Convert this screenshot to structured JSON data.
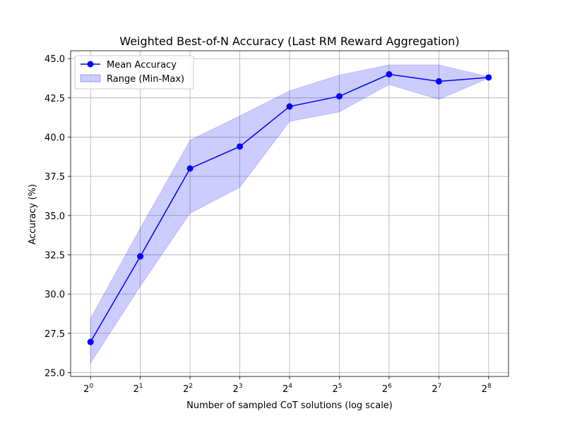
{
  "chart_data": {
    "type": "line",
    "title": "Weighted Best-of-N Accuracy (Last RM Reward Aggregation)",
    "xlabel": "Number of sampled CoT solutions (log scale)",
    "ylabel": "Accuracy (%)",
    "x_scale": "log2",
    "x": [
      1,
      2,
      4,
      8,
      16,
      32,
      64,
      128,
      256
    ],
    "x_tick_labels": [
      {
        "base": "2",
        "exp": "0"
      },
      {
        "base": "2",
        "exp": "1"
      },
      {
        "base": "2",
        "exp": "2"
      },
      {
        "base": "2",
        "exp": "3"
      },
      {
        "base": "2",
        "exp": "4"
      },
      {
        "base": "2",
        "exp": "5"
      },
      {
        "base": "2",
        "exp": "6"
      },
      {
        "base": "2",
        "exp": "7"
      },
      {
        "base": "2",
        "exp": "8"
      }
    ],
    "ylim": [
      24.75,
      45.5
    ],
    "y_ticks": [
      "25.0",
      "27.5",
      "30.0",
      "32.5",
      "35.0",
      "37.5",
      "40.0",
      "42.5",
      "45.0"
    ],
    "grid": true,
    "legend_position": "top-left",
    "series": [
      {
        "name": "Mean Accuracy",
        "kind": "line-marker",
        "color": "#0000ff",
        "values": [
          26.95,
          32.4,
          38.0,
          39.4,
          41.95,
          42.6,
          44.0,
          43.55,
          43.8
        ]
      },
      {
        "name": "Range (Min-Max)",
        "kind": "band",
        "color": "#0000ff",
        "opacity": 0.2,
        "lower": [
          25.6,
          30.5,
          35.15,
          36.8,
          41.0,
          41.6,
          43.35,
          42.4,
          43.75
        ],
        "upper": [
          28.45,
          34.2,
          39.8,
          41.35,
          42.95,
          43.95,
          44.6,
          44.6,
          43.85
        ]
      }
    ]
  }
}
